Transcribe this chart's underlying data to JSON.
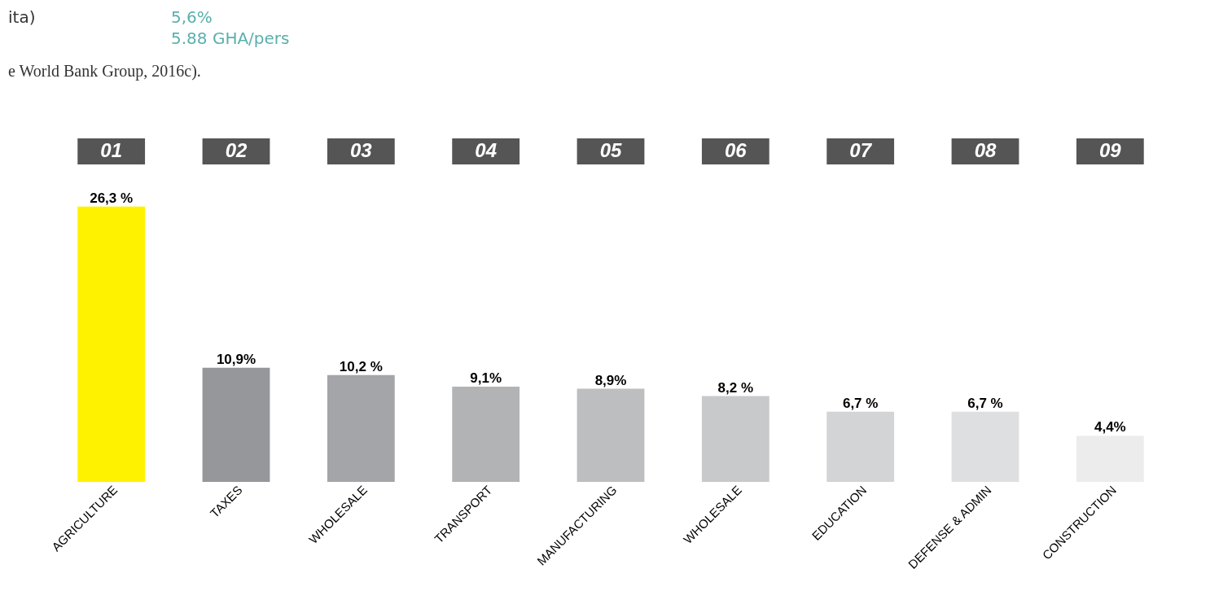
{
  "chart_data": {
    "type": "bar",
    "categories": [
      "AGRICULTURE",
      "TAXES",
      "WHOLESALE",
      "TRANSPORT",
      "MANUFACTURING",
      "WHOLESALE",
      "EDUCATION",
      "DEFENSE & ADMIN",
      "CONSTRUCTION"
    ],
    "values": [
      26.3,
      10.9,
      10.2,
      9.1,
      8.9,
      8.2,
      6.7,
      6.7,
      4.4
    ],
    "value_labels": [
      "26,3 %",
      "10,9%",
      "10,2 %",
      "9,1%",
      "8,9%",
      "8,2 %",
      "6,7 %",
      "6,7 %",
      "4,4%"
    ],
    "colors": [
      "#fff200",
      "#96979b",
      "#a4a5a8",
      "#b1b3b5",
      "#bdbec0",
      "#c8c9cb",
      "#d3d4d6",
      "#dedfe0",
      "#ececec"
    ],
    "annotations": [
      "ita)",
      "5,6%",
      "5.88 GHA/pers",
      "e World Bank Group, 2016c).",
      "01",
      "02",
      "03",
      "04",
      "05",
      "06",
      "07",
      "08",
      "09"
    ]
  }
}
